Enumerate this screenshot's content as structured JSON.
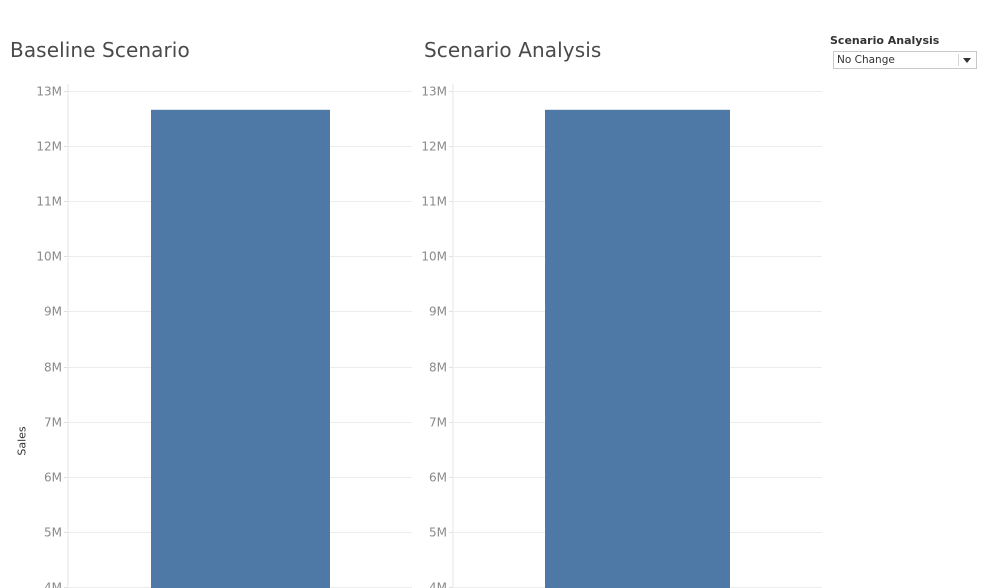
{
  "filter": {
    "title": "Scenario Analysis",
    "selected": "No Change",
    "icon": "chevron-down-icon"
  },
  "y_axis_title": "Sales",
  "colors": {
    "bar": "#4e79a7",
    "gridline": "#ececec",
    "tick_label": "#8a8a8a"
  },
  "chart_data": [
    {
      "type": "bar",
      "title": "Baseline Scenario",
      "ylabel": "Sales",
      "categories": [
        ""
      ],
      "values": [
        12650000
      ],
      "ylim": [
        4000000,
        13000000
      ],
      "yticks": [
        4000000,
        5000000,
        6000000,
        7000000,
        8000000,
        9000000,
        10000000,
        11000000,
        12000000,
        13000000
      ],
      "ytick_labels": [
        "4M",
        "5M",
        "6M",
        "7M",
        "8M",
        "9M",
        "10M",
        "11M",
        "12M",
        "13M"
      ],
      "grid": true,
      "legend": "none"
    },
    {
      "type": "bar",
      "title": "Scenario Analysis",
      "ylabel": "",
      "categories": [
        ""
      ],
      "values": [
        12650000
      ],
      "ylim": [
        4000000,
        13000000
      ],
      "yticks": [
        4000000,
        5000000,
        6000000,
        7000000,
        8000000,
        9000000,
        10000000,
        11000000,
        12000000,
        13000000
      ],
      "ytick_labels": [
        "4M",
        "5M",
        "6M",
        "7M",
        "8M",
        "9M",
        "10M",
        "11M",
        "12M",
        "13M"
      ],
      "grid": true,
      "legend": "none"
    }
  ]
}
